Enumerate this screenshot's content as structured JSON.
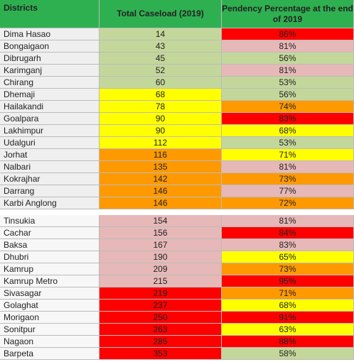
{
  "table": {
    "header": [
      "Districts",
      "Total Caseload (2019)",
      "Pendency Percentage at the end of 2019"
    ],
    "header_color": "#2fb050",
    "groups": [
      {
        "rows": [
          [
            "Dima Hasao",
            14,
            "86%"
          ],
          [
            "Bongaigaon",
            43,
            "81%"
          ],
          [
            "Dibrugarh",
            45,
            "56%"
          ],
          [
            "Karimganj",
            52,
            "81%"
          ],
          [
            "Chirang",
            60,
            "53%"
          ],
          [
            "Dhemaji",
            68,
            "56%"
          ],
          [
            "Hailakandi",
            78,
            "74%"
          ],
          [
            "Goalpara",
            90,
            "83%"
          ],
          [
            "Lakhimpur",
            90,
            "68%"
          ],
          [
            "Udalguri",
            112,
            "53%"
          ],
          [
            "Jorhat",
            116,
            "71%"
          ],
          [
            "Nalbari",
            135,
            "81%"
          ],
          [
            "Kokrajhar",
            142,
            "73%"
          ],
          [
            "Darrang",
            146,
            "77%"
          ],
          [
            "Karbi Anglong",
            146,
            "72%"
          ]
        ],
        "colors": [
          [
            "#c4d79b",
            "#ff0000"
          ],
          [
            "#c4d79b",
            "#e6b8b7"
          ],
          [
            "#c4d79b",
            "#c4d79b"
          ],
          [
            "#c4d79b",
            "#e6b8b7"
          ],
          [
            "#c4d79b",
            "#c4d79b"
          ],
          [
            "#ffff00",
            "#c4d79b"
          ],
          [
            "#ffff00",
            "#ff9900"
          ],
          [
            "#ffff00",
            "#ff0000"
          ],
          [
            "#ffff00",
            "#ffff00"
          ],
          [
            "#ffff00",
            "#c4d79b"
          ],
          [
            "#ff9900",
            "#ffff00"
          ],
          [
            "#ff9900",
            "#e6b8b7"
          ],
          [
            "#ff9900",
            "#ff9900"
          ],
          [
            "#ff9900",
            "#e6b8b7"
          ],
          [
            "#ff9900",
            "#ff9900"
          ]
        ]
      },
      {
        "rows": [
          [
            "Tinsukia",
            154,
            "81%"
          ],
          [
            "Cachar",
            156,
            "84%"
          ],
          [
            "Baksa",
            167,
            "83%"
          ],
          [
            "Dhubri",
            190,
            "65%"
          ],
          [
            "Kamrup",
            209,
            "73%"
          ],
          [
            "Kamrup Metro",
            215,
            "95%"
          ],
          [
            "Sivasagar",
            219,
            "71%"
          ],
          [
            "Golaghat",
            237,
            "68%"
          ],
          [
            "Morigaon",
            250,
            "91%"
          ],
          [
            "Sonitpur",
            263,
            "63%"
          ],
          [
            "Nagaon",
            285,
            "88%"
          ],
          [
            "Barpeta",
            353,
            "58%"
          ]
        ],
        "colors": [
          [
            "#e6b8b7",
            "#e6b8b7"
          ],
          [
            "#e6b8b7",
            "#ff0000"
          ],
          [
            "#e6b8b7",
            "#e6b8b7"
          ],
          [
            "#e6b8b7",
            "#ffff00"
          ],
          [
            "#e6b8b7",
            "#ff9900"
          ],
          [
            "#e6b8b7",
            "#ff0000"
          ],
          [
            "#ff0000",
            "#ff9900"
          ],
          [
            "#ff0000",
            "#ffff00"
          ],
          [
            "#ff0000",
            "#ff0000"
          ],
          [
            "#ff0000",
            "#ffff00"
          ],
          [
            "#ff0000",
            "#ff0000"
          ],
          [
            "#ff0000",
            "#c4d79b"
          ]
        ]
      }
    ]
  }
}
